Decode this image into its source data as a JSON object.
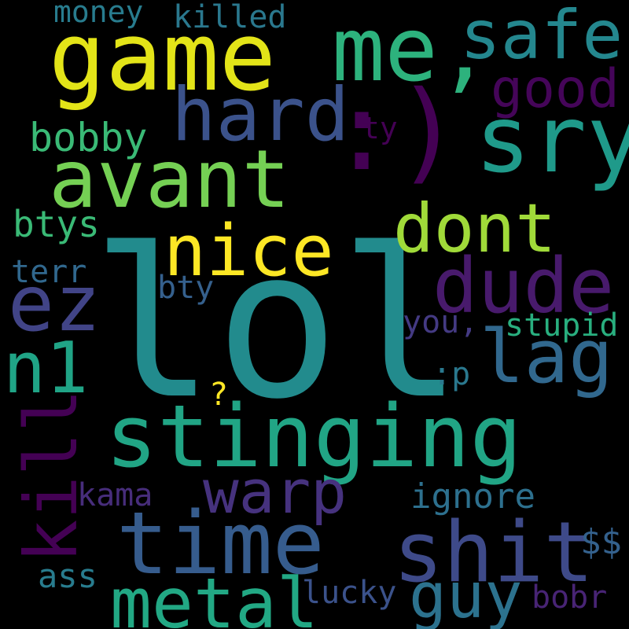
{
  "words": [
    {
      "id": "lol",
      "text": "lol",
      "color": "#228b8d"
    },
    {
      "id": "stinging",
      "text": "stinging",
      "color": "#21a585"
    },
    {
      "id": "game",
      "text": "game",
      "color": "#e3e418"
    },
    {
      "id": "me",
      "text": "me,",
      "color": "#2db27d"
    },
    {
      "id": "smiley",
      "text": ":)",
      "color": "#440154"
    },
    {
      "id": "sry",
      "text": "sry",
      "color": "#1f9a8a"
    },
    {
      "id": "safe",
      "text": "safe",
      "color": "#24878e"
    },
    {
      "id": "hard",
      "text": "hard",
      "color": "#3b528b"
    },
    {
      "id": "avant",
      "text": "avant",
      "color": "#75d054"
    },
    {
      "id": "good",
      "text": "good",
      "color": "#450559"
    },
    {
      "id": "bobby",
      "text": "bobby",
      "color": "#3aba76"
    },
    {
      "id": "ty",
      "text": "ty",
      "color": "#440154"
    },
    {
      "id": "dont",
      "text": "dont",
      "color": "#a0da39"
    },
    {
      "id": "nice",
      "text": "nice",
      "color": "#fde725"
    },
    {
      "id": "dude",
      "text": "dude",
      "color": "#481a6c"
    },
    {
      "id": "ez",
      "text": "ez",
      "color": "#414487"
    },
    {
      "id": "n1",
      "text": "n1",
      "color": "#20a486"
    },
    {
      "id": "lag",
      "text": "lag",
      "color": "#31688e"
    },
    {
      "id": "btys",
      "text": "btys",
      "color": "#3aba76"
    },
    {
      "id": "terr",
      "text": "terr",
      "color": "#31688e"
    },
    {
      "id": "bty",
      "text": "bty",
      "color": "#35608d"
    },
    {
      "id": "you",
      "text": "you,",
      "color": "#443a83"
    },
    {
      "id": "stupid",
      "text": "stupid",
      "color": "#29af7f"
    },
    {
      "id": "p",
      "text": ":p",
      "color": "#2a788e"
    },
    {
      "id": "question",
      "text": "?",
      "color": "#fde725"
    },
    {
      "id": "kill",
      "text": "kill",
      "color": "#440154"
    },
    {
      "id": "warp",
      "text": "warp",
      "color": "#46327e"
    },
    {
      "id": "kama",
      "text": "kama",
      "color": "#472d7b"
    },
    {
      "id": "ignore",
      "text": "ignore",
      "color": "#2d708e"
    },
    {
      "id": "time",
      "text": "time",
      "color": "#365c8d"
    },
    {
      "id": "shit",
      "text": "shit",
      "color": "#3e4a89"
    },
    {
      "id": "dollars",
      "text": "$$",
      "color": "#34618d"
    },
    {
      "id": "metal",
      "text": "metal",
      "color": "#22a884"
    },
    {
      "id": "guy",
      "text": "guy",
      "color": "#2c728e"
    },
    {
      "id": "ass",
      "text": "ass",
      "color": "#287c8e"
    },
    {
      "id": "lucky",
      "text": "lucky",
      "color": "#3b528b"
    },
    {
      "id": "bobr",
      "text": "bobr",
      "color": "#482475"
    },
    {
      "id": "money",
      "text": "money",
      "color": "#287c8e"
    },
    {
      "id": "killed",
      "text": "killed",
      "color": "#2a788e"
    }
  ]
}
